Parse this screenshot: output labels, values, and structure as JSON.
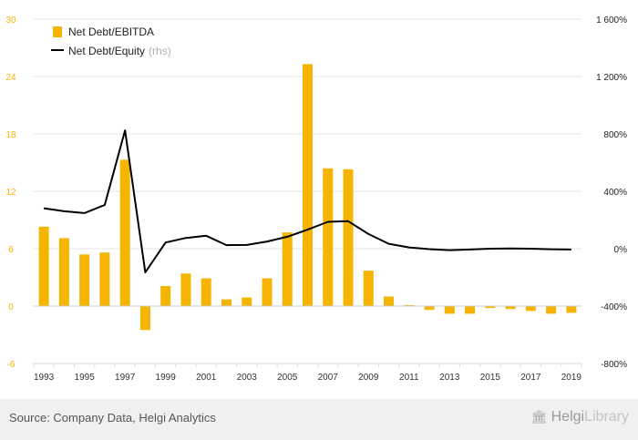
{
  "chart_data": {
    "type": "bar+line",
    "categories": [
      "1993",
      "1994",
      "1995",
      "1996",
      "1997",
      "1998",
      "1999",
      "2000",
      "2001",
      "2002",
      "2003",
      "2004",
      "2005",
      "2006",
      "2007",
      "2008",
      "2009",
      "2010",
      "2011",
      "2012",
      "2013",
      "2014",
      "2015",
      "2016",
      "2017",
      "2018",
      "2019"
    ],
    "x_tick_labels": [
      "1993",
      "1995",
      "1997",
      "1999",
      "2001",
      "2003",
      "2005",
      "2007",
      "2009",
      "2011",
      "2013",
      "2015",
      "2017",
      "2019"
    ],
    "series": [
      {
        "name": "Net Debt/EBITDA",
        "type": "bar",
        "axis": "left",
        "values": [
          8.3,
          7.1,
          5.4,
          5.6,
          15.3,
          -2.5,
          2.1,
          3.4,
          2.9,
          0.7,
          0.9,
          2.9,
          7.7,
          25.3,
          14.4,
          14.3,
          3.7,
          1.0,
          0.1,
          -0.4,
          -0.8,
          -0.8,
          -0.2,
          -0.3,
          -0.5,
          -0.8,
          -0.7
        ]
      },
      {
        "name": "Net Debt/Equity",
        "name_suffix": "(rhs)",
        "type": "line",
        "axis": "right",
        "values": [
          282,
          261,
          248,
          305,
          825,
          -165,
          43,
          75,
          90,
          25,
          26,
          50,
          83,
          133,
          187,
          192,
          102,
          34,
          9,
          -3,
          -10,
          -6,
          0,
          2,
          0,
          -4,
          -6
        ]
      }
    ],
    "y_left": {
      "lim": [
        -6,
        30
      ],
      "ticks": [
        "-6",
        "0",
        "6",
        "12",
        "18",
        "24",
        "30"
      ],
      "tick_values": [
        -6,
        0,
        6,
        12,
        18,
        24,
        30
      ]
    },
    "y_right": {
      "lim": [
        -800,
        1600
      ],
      "ticks": [
        "-800%",
        "-400%",
        "0%",
        "400%",
        "800%",
        "1 200%",
        "1 600%"
      ],
      "tick_values": [
        -800,
        -400,
        0,
        400,
        800,
        1200,
        1600
      ]
    },
    "grid": true,
    "legend_position": "top-left",
    "colors": {
      "bar": "#f5b400",
      "line": "#000000",
      "left_axis_text": "#f5b400",
      "right_axis_text": "#222222",
      "grid": "#e6e6e6"
    }
  },
  "footer": {
    "source": "Source: Company Data, Helgi Analytics",
    "brand_part1": "Helgi",
    "brand_part2": "Library",
    "brand_icon": "library-building-icon"
  }
}
